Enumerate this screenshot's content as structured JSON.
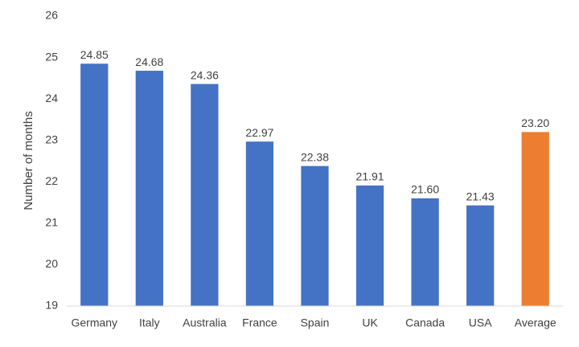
{
  "chart_data": {
    "type": "bar",
    "y_label": "Number of months",
    "categories": [
      "Germany",
      "Italy",
      "Australia",
      "France",
      "Spain",
      "UK",
      "Canada",
      "USA",
      "Average"
    ],
    "values": [
      24.85,
      24.68,
      24.36,
      22.97,
      22.38,
      21.91,
      21.6,
      21.43,
      23.2
    ],
    "value_labels": [
      "24.85",
      "24.68",
      "24.36",
      "22.97",
      "22.38",
      "21.91",
      "21.60",
      "21.43",
      "23.20"
    ],
    "colors": [
      "#4472c4",
      "#4472c4",
      "#4472c4",
      "#4472c4",
      "#4472c4",
      "#4472c4",
      "#4472c4",
      "#4472c4",
      "#ed7d31"
    ],
    "ylim": [
      19,
      26
    ],
    "yticks": [
      19,
      20,
      21,
      22,
      23,
      24,
      25,
      26
    ],
    "grid": false
  }
}
